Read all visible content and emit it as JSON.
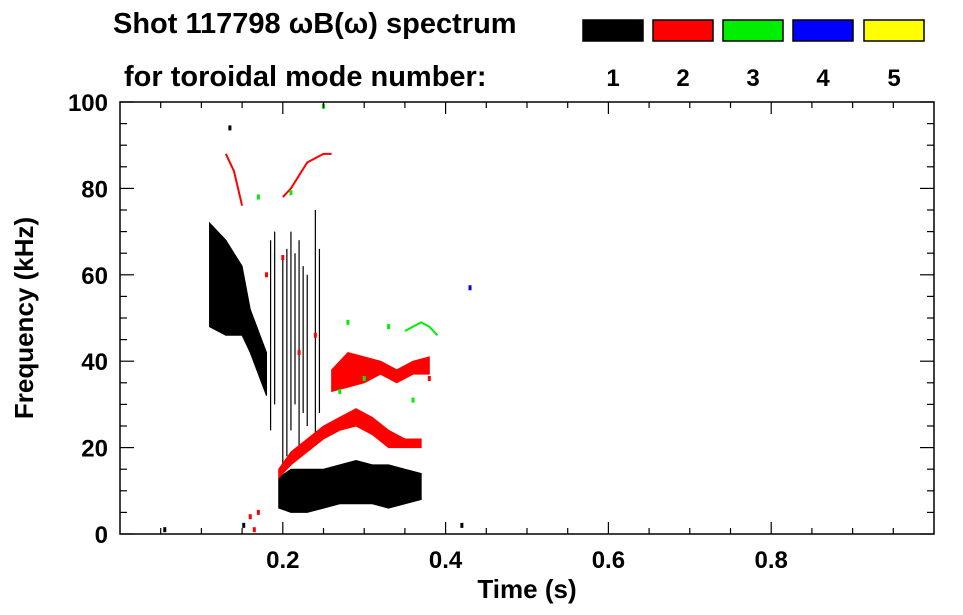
{
  "chart_data": {
    "type": "heatmap",
    "title_line1": "Shot 117798 ωB(ω) spectrum",
    "title_line2": "for toroidal mode number:",
    "xlabel": "Time (s)",
    "ylabel": "Frequency (kHz)",
    "xlim": [
      0.0,
      1.0
    ],
    "ylim": [
      0,
      100
    ],
    "xticks": [
      0.2,
      0.4,
      0.6,
      0.8
    ],
    "xtick_labels": [
      "0.2",
      "0.4",
      "0.6",
      "0.8"
    ],
    "yticks": [
      0,
      20,
      40,
      60,
      80,
      100
    ],
    "ytick_labels": [
      "0",
      "20",
      "40",
      "60",
      "80",
      "100"
    ],
    "grid": false,
    "legend": [
      {
        "label": "1",
        "color": "#000000"
      },
      {
        "label": "2",
        "color": "#ff0000"
      },
      {
        "label": "3",
        "color": "#00ee00"
      },
      {
        "label": "4",
        "color": "#0000ff"
      },
      {
        "label": "5",
        "color": "#ffff00"
      }
    ],
    "series": [
      {
        "mode": "1",
        "color": "#000000",
        "bands": [
          {
            "kind": "fill",
            "upper": [
              [
                0.11,
                72
              ],
              [
                0.13,
                68
              ],
              [
                0.15,
                62
              ],
              [
                0.16,
                52
              ],
              [
                0.18,
                42
              ]
            ],
            "lower": [
              [
                0.11,
                48
              ],
              [
                0.13,
                46
              ],
              [
                0.15,
                46
              ],
              [
                0.16,
                42
              ],
              [
                0.18,
                32
              ]
            ]
          },
          {
            "kind": "fill",
            "upper": [
              [
                0.195,
                13
              ],
              [
                0.21,
                15
              ],
              [
                0.23,
                15
              ],
              [
                0.25,
                15
              ],
              [
                0.27,
                16
              ],
              [
                0.29,
                17
              ],
              [
                0.31,
                16
              ],
              [
                0.33,
                16
              ],
              [
                0.35,
                15
              ],
              [
                0.37,
                14
              ]
            ],
            "lower": [
              [
                0.195,
                6
              ],
              [
                0.21,
                5
              ],
              [
                0.23,
                5
              ],
              [
                0.25,
                6
              ],
              [
                0.27,
                7
              ],
              [
                0.29,
                7
              ],
              [
                0.31,
                7
              ],
              [
                0.33,
                6
              ],
              [
                0.35,
                7
              ],
              [
                0.37,
                8
              ]
            ]
          },
          {
            "kind": "spikes",
            "x": [
              0.185,
              0.19,
              0.2,
              0.205,
              0.21,
              0.215,
              0.22,
              0.225,
              0.23,
              0.24,
              0.245
            ],
            "lo": [
              24,
              30,
              14,
              18,
              24,
              30,
              20,
              28,
              25,
              22,
              28
            ],
            "hi": [
              68,
              70,
              64,
              66,
              70,
              65,
              68,
              62,
              60,
              75,
              66
            ]
          },
          {
            "kind": "points",
            "x": [
              0.055,
              0.135,
              0.152,
              0.42
            ],
            "y": [
              1,
              94,
              2,
              2
            ]
          }
        ]
      },
      {
        "mode": "2",
        "color": "#ff0000",
        "bands": [
          {
            "kind": "line",
            "x": [
              0.13,
              0.14,
              0.145,
              0.15
            ],
            "y": [
              88,
              84,
              80,
              76
            ]
          },
          {
            "kind": "line",
            "x": [
              0.2,
              0.21,
              0.22,
              0.23,
              0.24,
              0.25,
              0.26
            ],
            "y": [
              78,
              80,
              83,
              86,
              87,
              88,
              88
            ]
          },
          {
            "kind": "fill",
            "upper": [
              [
                0.195,
                15
              ],
              [
                0.21,
                19
              ],
              [
                0.23,
                22
              ],
              [
                0.25,
                25
              ],
              [
                0.27,
                27
              ],
              [
                0.29,
                29
              ],
              [
                0.3,
                28
              ],
              [
                0.31,
                27
              ],
              [
                0.33,
                24
              ],
              [
                0.35,
                22
              ],
              [
                0.37,
                22
              ]
            ],
            "lower": [
              [
                0.195,
                13
              ],
              [
                0.21,
                16
              ],
              [
                0.23,
                19
              ],
              [
                0.25,
                22
              ],
              [
                0.27,
                24
              ],
              [
                0.29,
                25
              ],
              [
                0.3,
                24
              ],
              [
                0.31,
                23
              ],
              [
                0.33,
                20
              ],
              [
                0.35,
                20
              ],
              [
                0.37,
                20
              ]
            ]
          },
          {
            "kind": "fill",
            "upper": [
              [
                0.26,
                38
              ],
              [
                0.28,
                42
              ],
              [
                0.3,
                41
              ],
              [
                0.32,
                40
              ],
              [
                0.34,
                38
              ],
              [
                0.36,
                40
              ],
              [
                0.38,
                41
              ]
            ],
            "lower": [
              [
                0.26,
                33
              ],
              [
                0.28,
                34
              ],
              [
                0.3,
                35
              ],
              [
                0.32,
                37
              ],
              [
                0.34,
                35
              ],
              [
                0.36,
                37
              ],
              [
                0.38,
                37
              ]
            ]
          },
          {
            "kind": "points",
            "x": [
              0.16,
              0.17,
              0.18,
              0.2,
              0.22,
              0.24,
              0.35,
              0.38,
              0.165
            ],
            "y": [
              4,
              5,
              60,
              64,
              42,
              46,
              38,
              36,
              1
            ]
          }
        ]
      },
      {
        "mode": "3",
        "color": "#00ee00",
        "bands": [
          {
            "kind": "line",
            "x": [
              0.35,
              0.36,
              0.37,
              0.38,
              0.39
            ],
            "y": [
              47,
              48,
              49,
              48,
              46
            ]
          },
          {
            "kind": "points",
            "x": [
              0.25,
              0.17,
              0.21,
              0.33,
              0.28,
              0.36,
              0.27,
              0.3
            ],
            "y": [
              99,
              78,
              79,
              48,
              49,
              31,
              33,
              36
            ]
          }
        ]
      },
      {
        "mode": "4",
        "color": "#0000ff",
        "bands": [
          {
            "kind": "points",
            "x": [
              0.43
            ],
            "y": [
              57
            ]
          }
        ]
      },
      {
        "mode": "5",
        "color": "#ffff00",
        "bands": []
      }
    ]
  }
}
